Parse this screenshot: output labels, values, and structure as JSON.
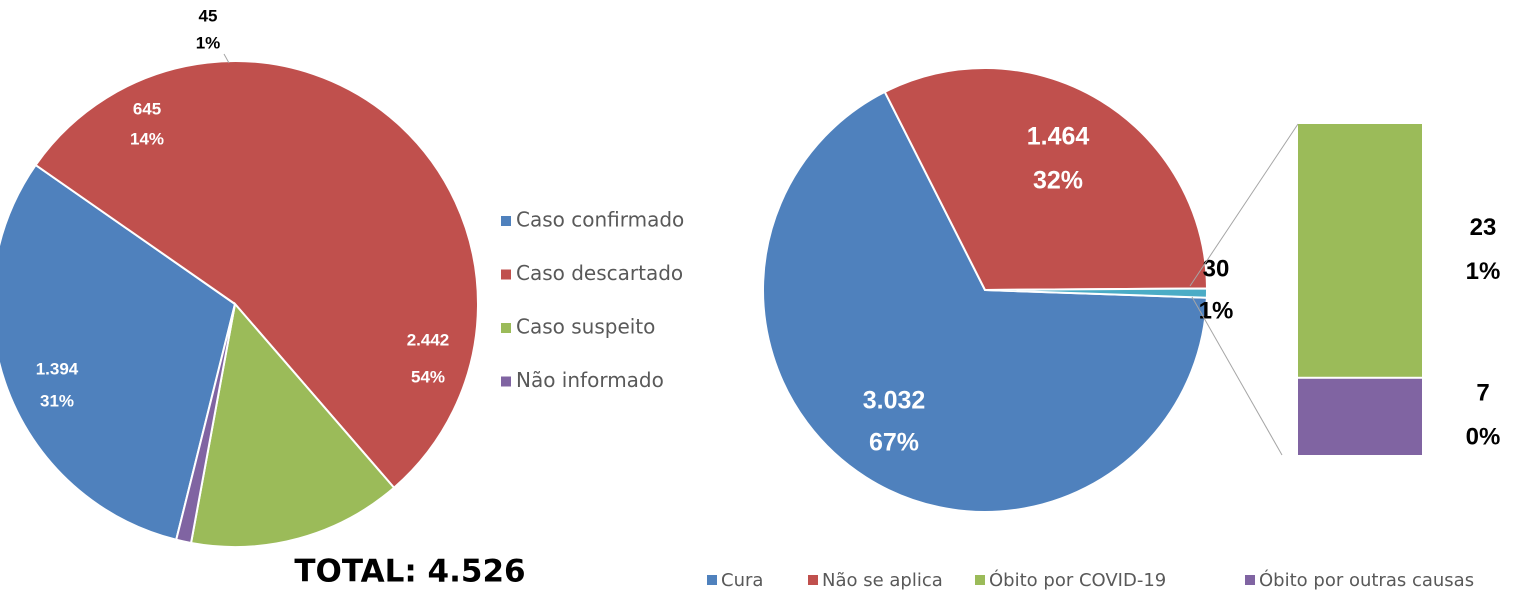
{
  "chart_data": [
    {
      "type": "pie",
      "categories": [
        "Caso confirmado",
        "Caso descartado",
        "Caso suspeito",
        "Não informado"
      ],
      "values": [
        1394,
        2442,
        645,
        45
      ],
      "value_labels": [
        "1.394",
        "2.442",
        "645",
        "45"
      ],
      "percent_labels": [
        "31%",
        "54%",
        "14%",
        "1%"
      ],
      "colors": [
        "#4f81bd",
        "#c0504d",
        "#9bbb59",
        "#8064a2"
      ],
      "start_angle": 194,
      "legend": "right",
      "annotation": "TOTAL: 4.526"
    },
    {
      "type": "bar_of_pie",
      "categories": [
        "Cura",
        "Não se aplica",
        null
      ],
      "values": [
        3032,
        1464,
        30
      ],
      "value_labels": [
        "3.032",
        "1.464",
        "30"
      ],
      "percent_labels": [
        "67%",
        "32%",
        "1%"
      ],
      "colors": [
        "#4f81bd",
        "#c0504d",
        "#4bacc6"
      ],
      "start_angle": 92,
      "bar": {
        "categories": [
          "Óbito por COVID-19",
          "Óbito por outras causas"
        ],
        "values": [
          23,
          7
        ],
        "percent_labels": [
          "1%",
          "0%"
        ],
        "colors": [
          "#9bbb59",
          "#8064a2"
        ]
      },
      "legend": "bottom"
    }
  ]
}
